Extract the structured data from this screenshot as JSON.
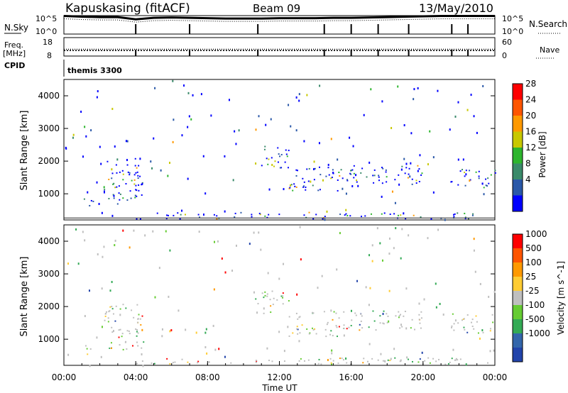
{
  "header": {
    "station": "Kapuskasing (fitACF)",
    "beam": "Beam 09",
    "date": "13/May/2010"
  },
  "side_labels": {
    "nsky": "N.Sky",
    "freq": "Freq.",
    "freq_unit": "[MHz]",
    "cpid": "CPID",
    "nsearch": "N.Search",
    "nave": "Nave",
    "cpid_value": "themis 3300"
  },
  "chart_data": [
    {
      "type": "line",
      "name": "noise",
      "series": [
        {
          "name": "N.Sky",
          "style": "solid"
        },
        {
          "name": "N.Search",
          "style": "dotted"
        }
      ],
      "y_ticks_left": [
        "10^5",
        "10^0"
      ],
      "y_ticks_right": [
        "10^5",
        "10^0"
      ],
      "x": [
        0,
        1,
        2,
        3,
        4,
        5,
        6,
        7,
        8,
        9,
        10,
        11,
        12,
        13,
        14,
        15,
        16,
        17,
        18,
        19,
        20,
        21,
        22,
        23,
        24
      ],
      "values": [
        4.9,
        4.7,
        4.6,
        4.6,
        4.0,
        4.4,
        4.5,
        4.4,
        4.3,
        4.2,
        4.2,
        4.2,
        4.3,
        4.3,
        4.3,
        4.4,
        4.4,
        4.5,
        4.6,
        4.7,
        4.8,
        4.9,
        4.9,
        4.9,
        4.9
      ],
      "ylim": [
        0,
        5
      ]
    },
    {
      "type": "line",
      "name": "frequency",
      "y_ticks_left": [
        "18",
        "8"
      ],
      "y_ticks_right": [
        "60",
        "0"
      ],
      "freq_mhz": 11,
      "nave": 22,
      "ylim_left": [
        8,
        18
      ],
      "ylim_right": [
        0,
        60
      ]
    },
    {
      "type": "heatmap",
      "name": "power",
      "ylabel": "Slant Range [km]",
      "y_ticks": [
        "4000",
        "3000",
        "2000",
        "1000"
      ],
      "ylim": [
        200,
        4500
      ],
      "colorbar_label": "Power [dB]",
      "colorbar_ticks": [
        "28",
        "24",
        "20",
        "16",
        "12",
        "8",
        "4"
      ],
      "colorbar_colors": [
        "#0000ff",
        "#2a58a8",
        "#3a8a6a",
        "#2db52d",
        "#c8c800",
        "#ff9900",
        "#ff5500",
        "#ff0000"
      ],
      "echo_regions": [
        {
          "t_start": 1.0,
          "t_end": 1.6,
          "r_min": 550,
          "r_max": 900
        },
        {
          "t_start": 2.2,
          "t_end": 4.4,
          "r_min": 700,
          "r_max": 2100
        },
        {
          "t_start": 3.8,
          "t_end": 4.2,
          "r_min": 800,
          "r_max": 1900
        },
        {
          "t_start": 10.6,
          "t_end": 12.5,
          "r_min": 1800,
          "r_max": 2500
        },
        {
          "t_start": 12.5,
          "t_end": 16.0,
          "r_min": 1100,
          "r_max": 1900
        },
        {
          "t_start": 16.0,
          "t_end": 20.0,
          "r_min": 1300,
          "r_max": 1900
        },
        {
          "t_start": 21.5,
          "t_end": 24.0,
          "r_min": 1200,
          "r_max": 1800
        },
        {
          "t_start": 4.0,
          "t_end": 24.0,
          "r_min": 250,
          "r_max": 450
        }
      ]
    },
    {
      "type": "heatmap",
      "name": "velocity",
      "ylabel": "Slant Range [km]",
      "y_ticks": [
        "4000",
        "3000",
        "2000",
        "1000"
      ],
      "ylim": [
        200,
        4500
      ],
      "colorbar_label": "Velocity [m s^-1]",
      "colorbar_ticks": [
        "1000",
        "500",
        "100",
        "25",
        "-25",
        "-100",
        "-500",
        "-1000"
      ],
      "colorbar_colors": [
        "#2244aa",
        "#3366aa",
        "#33aa55",
        "#66cc33",
        "#bfbfbf",
        "#ffcc33",
        "#ff9900",
        "#ff5500",
        "#ff0000"
      ],
      "xlabel": "Time UT",
      "x_ticks": [
        "00:00",
        "04:00",
        "08:00",
        "12:00",
        "16:00",
        "20:00",
        "00:00"
      ],
      "xlim": [
        0,
        24
      ]
    }
  ]
}
